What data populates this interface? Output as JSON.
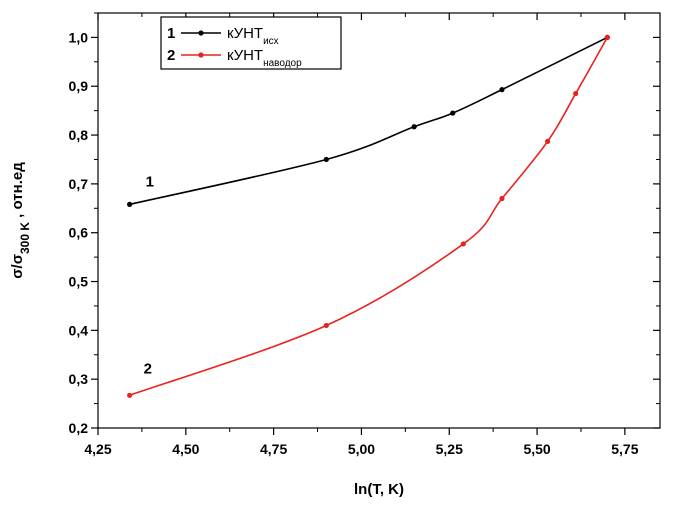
{
  "chart_data": {
    "type": "line",
    "xlabel": "ln(T, K)",
    "ylabel": {
      "prefix": "σ/σ",
      "subscript": "300 K",
      "suffix": " , отн.ед"
    },
    "xlim": [
      4.25,
      5.85
    ],
    "ylim": [
      0.2,
      1.05
    ],
    "x_ticks": [
      "4,25",
      "4,50",
      "4,75",
      "5,00",
      "5,25",
      "5,50",
      "5,75"
    ],
    "y_ticks": [
      "0,2",
      "0,3",
      "0,4",
      "0,5",
      "0,6",
      "0,7",
      "0,8",
      "0,9",
      "1,0"
    ],
    "grid": false,
    "legend_position": "top-left",
    "series": [
      {
        "name": "1",
        "legend_label": "кУНТ",
        "legend_subscript": "исх",
        "curve_label": "1",
        "color": "#000000",
        "x": [
          4.34,
          4.9,
          5.15,
          5.26,
          5.4,
          5.7
        ],
        "y": [
          0.658,
          0.75,
          0.817,
          0.845,
          0.893,
          1.0
        ]
      },
      {
        "name": "2",
        "legend_label": "кУНТ",
        "legend_subscript": "наводор",
        "curve_label": "2",
        "color": "#e8231e",
        "x": [
          4.34,
          4.9,
          5.29,
          5.4,
          5.53,
          5.61,
          5.7
        ],
        "y": [
          0.267,
          0.41,
          0.577,
          0.67,
          0.787,
          0.885,
          1.0
        ]
      }
    ]
  }
}
